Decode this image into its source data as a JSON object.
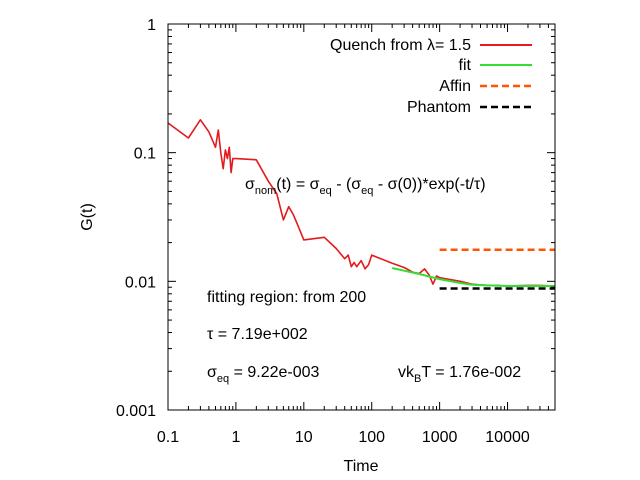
{
  "chart_data": {
    "type": "line",
    "title": "",
    "xlabel": "Time",
    "ylabel": "G(t)",
    "xscale": "log",
    "yscale": "log",
    "xlim": [
      0.1,
      50000
    ],
    "ylim": [
      0.001,
      1
    ],
    "x_ticks": [
      {
        "value": 0.1,
        "label": "0.1"
      },
      {
        "value": 1,
        "label": "1"
      },
      {
        "value": 10,
        "label": "10"
      },
      {
        "value": 100,
        "label": "100"
      },
      {
        "value": 1000,
        "label": "1000"
      },
      {
        "value": 10000,
        "label": "10000"
      }
    ],
    "y_ticks": [
      {
        "value": 0.001,
        "label": "0.001"
      },
      {
        "value": 0.01,
        "label": "0.01"
      },
      {
        "value": 0.1,
        "label": "0.1"
      },
      {
        "value": 1,
        "label": "1"
      }
    ],
    "grid": false,
    "legend": {
      "position": "top-right",
      "entries": [
        {
          "label": "Quench from λ= 1.5",
          "color": "#e41a1c",
          "dash": "solid"
        },
        {
          "label": "fit",
          "color": "#33dd33",
          "dash": "solid"
        },
        {
          "label": "Affin",
          "color": "#ff5500",
          "dash": "dashed"
        },
        {
          "label": "Phantom",
          "color": "#000000",
          "dash": "dashed"
        }
      ]
    },
    "series": [
      {
        "name": "Quench from λ= 1.5",
        "color": "#e41a1c",
        "dash": "solid",
        "x": [
          0.1,
          0.2,
          0.3,
          0.4,
          0.5,
          0.55,
          0.6,
          0.65,
          0.7,
          0.75,
          0.8,
          0.85,
          0.9,
          1,
          2,
          3,
          4,
          5,
          6,
          7,
          8,
          10,
          20,
          30,
          40,
          45,
          50,
          55,
          60,
          70,
          80,
          90,
          100,
          200,
          300,
          400,
          500,
          600,
          700,
          800,
          900,
          1000,
          2000,
          3000,
          5000,
          7000,
          10000,
          20000,
          30000,
          50000
        ],
        "y": [
          0.17,
          0.13,
          0.18,
          0.145,
          0.11,
          0.15,
          0.1,
          0.075,
          0.105,
          0.09,
          0.11,
          0.07,
          0.09,
          0.09,
          0.088,
          0.06,
          0.048,
          0.03,
          0.038,
          0.033,
          0.028,
          0.021,
          0.022,
          0.018,
          0.015,
          0.016,
          0.013,
          0.014,
          0.013,
          0.0145,
          0.0125,
          0.0135,
          0.016,
          0.0138,
          0.0128,
          0.0118,
          0.0115,
          0.0125,
          0.0112,
          0.0095,
          0.011,
          0.0107,
          0.01,
          0.0095,
          0.0093,
          0.0093,
          0.0092,
          0.0093,
          0.0093,
          0.0092
        ]
      },
      {
        "name": "fit",
        "color": "#33dd33",
        "dash": "solid",
        "x": [
          200,
          300,
          500,
          700,
          1000,
          2000,
          3000,
          5000,
          10000,
          20000,
          50000
        ],
        "y": [
          0.0127,
          0.0121,
          0.0114,
          0.0109,
          0.0104,
          0.0097,
          0.0094,
          0.0093,
          0.0092,
          0.0092,
          0.0092
        ]
      },
      {
        "name": "Affin",
        "color": "#ff5500",
        "dash": "dashed",
        "x": [
          1000,
          50000
        ],
        "y": [
          0.0176,
          0.0176
        ]
      },
      {
        "name": "Phantom",
        "color": "#000000",
        "dash": "dashed",
        "x": [
          1000,
          50000
        ],
        "y": [
          0.0088,
          0.0088
        ]
      }
    ],
    "annotations": {
      "formula": {
        "s1": "σ",
        "sub1": "nom",
        "s2": "(t) = σ",
        "sub2": "eq",
        "s3": " - (σ",
        "sub3": "eq",
        "s4": " - σ(0))*exp(-t/τ)"
      },
      "fitting_region": "fitting region: from 200",
      "tau": "τ = 7.19e+002",
      "sigma_eq": {
        "s1": "σ",
        "sub1": "eq",
        "s2": " = 9.22e-003"
      },
      "vkbt": {
        "s1": "vk",
        "sub1": "B",
        "s2": "T = 1.76e-002"
      }
    }
  }
}
